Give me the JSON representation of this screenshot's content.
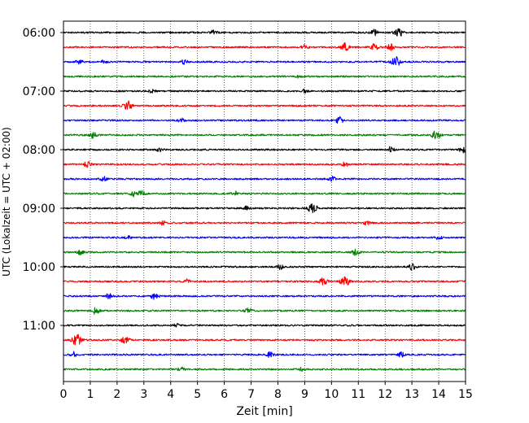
{
  "chart_data": {
    "type": "line",
    "title": "",
    "xlabel": "Zeit  [min]",
    "ylabel": "UTC (Lokalzeit = UTC + 02:00)",
    "xlim": [
      0,
      15
    ],
    "x_ticks": [
      0,
      1,
      2,
      3,
      4,
      5,
      6,
      7,
      8,
      9,
      10,
      11,
      12,
      13,
      14,
      15
    ],
    "vertical_grid": "dotted, every minute",
    "y_ticks": [
      {
        "label": "06:00",
        "row": 0
      },
      {
        "label": "07:00",
        "row": 4
      },
      {
        "label": "08:00",
        "row": 8
      },
      {
        "label": "09:00",
        "row": 12
      },
      {
        "label": "10:00",
        "row": 16
      },
      {
        "label": "11:00",
        "row": 20
      }
    ],
    "trace_interval_min": 15,
    "first_trace": "06:00",
    "trace_colors": [
      "#000000",
      "#ff0000",
      "#0000ff",
      "#008000"
    ],
    "traces": [
      {
        "start": "06:00",
        "color": "#000000",
        "events": [
          {
            "t": 5.6,
            "a": 0.35
          },
          {
            "t": 11.6,
            "a": 0.4
          },
          {
            "t": 12.5,
            "a": 0.7
          }
        ]
      },
      {
        "start": "06:15",
        "color": "#ff0000",
        "events": [
          {
            "t": 9.0,
            "a": 0.35
          },
          {
            "t": 10.5,
            "a": 0.6
          },
          {
            "t": 11.6,
            "a": 0.5
          },
          {
            "t": 12.2,
            "a": 0.45
          }
        ]
      },
      {
        "start": "06:30",
        "color": "#0000ff",
        "events": [
          {
            "t": 0.6,
            "a": 0.45
          },
          {
            "t": 1.5,
            "a": 0.3
          },
          {
            "t": 4.5,
            "a": 0.35
          },
          {
            "t": 12.4,
            "a": 0.75
          }
        ]
      },
      {
        "start": "06:45",
        "color": "#008000",
        "events": [
          {
            "t": 8.8,
            "a": 0.25
          }
        ]
      },
      {
        "start": "07:00",
        "color": "#000000",
        "events": [
          {
            "t": 3.3,
            "a": 0.25
          },
          {
            "t": 9.0,
            "a": 0.25
          }
        ]
      },
      {
        "start": "07:15",
        "color": "#ff0000",
        "events": [
          {
            "t": 2.4,
            "a": 0.7
          }
        ]
      },
      {
        "start": "07:30",
        "color": "#0000ff",
        "events": [
          {
            "t": 4.4,
            "a": 0.3
          },
          {
            "t": 10.3,
            "a": 0.5
          }
        ]
      },
      {
        "start": "07:45",
        "color": "#008000",
        "events": [
          {
            "t": 1.1,
            "a": 0.45
          },
          {
            "t": 13.9,
            "a": 0.7
          }
        ]
      },
      {
        "start": "08:00",
        "color": "#000000",
        "events": [
          {
            "t": 3.6,
            "a": 0.3
          },
          {
            "t": 12.2,
            "a": 0.4
          },
          {
            "t": 14.9,
            "a": 0.45
          }
        ]
      },
      {
        "start": "08:15",
        "color": "#ff0000",
        "events": [
          {
            "t": 0.9,
            "a": 0.45
          },
          {
            "t": 10.5,
            "a": 0.3
          }
        ]
      },
      {
        "start": "08:30",
        "color": "#0000ff",
        "events": [
          {
            "t": 1.5,
            "a": 0.35
          },
          {
            "t": 10.0,
            "a": 0.4
          }
        ]
      },
      {
        "start": "08:45",
        "color": "#008000",
        "events": [
          {
            "t": 2.6,
            "a": 0.4
          },
          {
            "t": 2.9,
            "a": 0.45
          },
          {
            "t": 6.4,
            "a": 0.35
          }
        ]
      },
      {
        "start": "09:00",
        "color": "#000000",
        "events": [
          {
            "t": 9.3,
            "a": 0.8
          },
          {
            "t": 6.8,
            "a": 0.3
          }
        ]
      },
      {
        "start": "09:15",
        "color": "#ff0000",
        "events": [
          {
            "t": 3.7,
            "a": 0.3
          },
          {
            "t": 11.3,
            "a": 0.3
          }
        ]
      },
      {
        "start": "09:30",
        "color": "#0000ff",
        "events": [
          {
            "t": 2.4,
            "a": 0.3
          },
          {
            "t": 14.0,
            "a": 0.35
          }
        ]
      },
      {
        "start": "09:45",
        "color": "#008000",
        "events": [
          {
            "t": 0.6,
            "a": 0.4
          },
          {
            "t": 10.9,
            "a": 0.45
          }
        ]
      },
      {
        "start": "10:00",
        "color": "#000000",
        "events": [
          {
            "t": 8.1,
            "a": 0.35
          },
          {
            "t": 13.0,
            "a": 0.45
          }
        ]
      },
      {
        "start": "10:15",
        "color": "#ff0000",
        "events": [
          {
            "t": 4.6,
            "a": 0.3
          },
          {
            "t": 9.7,
            "a": 0.55
          },
          {
            "t": 10.5,
            "a": 0.8
          }
        ]
      },
      {
        "start": "10:30",
        "color": "#0000ff",
        "events": [
          {
            "t": 1.7,
            "a": 0.35
          },
          {
            "t": 3.4,
            "a": 0.5
          }
        ]
      },
      {
        "start": "10:45",
        "color": "#008000",
        "events": [
          {
            "t": 1.2,
            "a": 0.5
          },
          {
            "t": 6.9,
            "a": 0.4
          }
        ]
      },
      {
        "start": "11:00",
        "color": "#000000",
        "events": [
          {
            "t": 4.2,
            "a": 0.25
          }
        ]
      },
      {
        "start": "11:15",
        "color": "#ff0000",
        "events": [
          {
            "t": 0.5,
            "a": 0.85
          },
          {
            "t": 2.3,
            "a": 0.6
          }
        ]
      },
      {
        "start": "11:30",
        "color": "#0000ff",
        "events": [
          {
            "t": 0.4,
            "a": 0.45
          },
          {
            "t": 7.7,
            "a": 0.4
          },
          {
            "t": 12.6,
            "a": 0.35
          }
        ]
      },
      {
        "start": "11:45",
        "color": "#008000",
        "events": [
          {
            "t": 4.4,
            "a": 0.35
          },
          {
            "t": 8.9,
            "a": 0.3
          }
        ]
      }
    ]
  }
}
